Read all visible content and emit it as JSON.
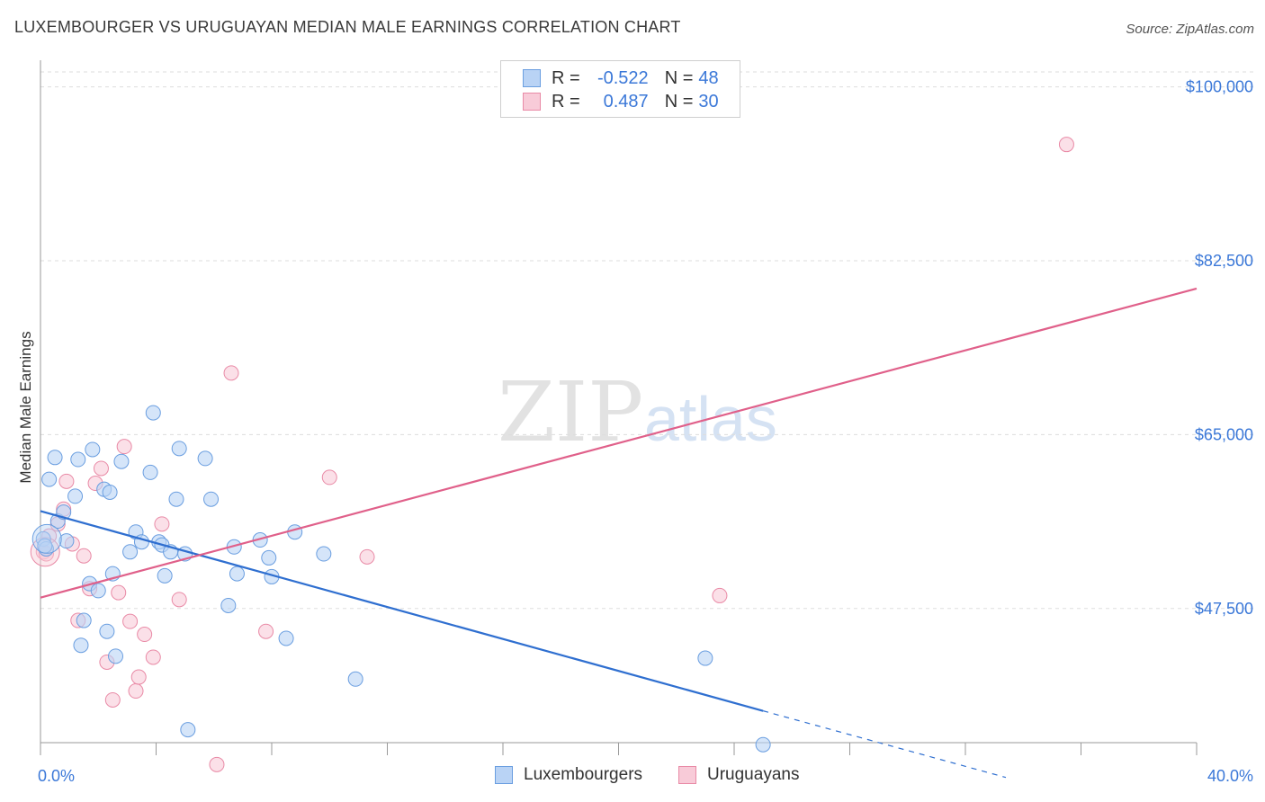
{
  "title": "LUXEMBOURGER VS URUGUAYAN MEDIAN MALE EARNINGS CORRELATION CHART",
  "source": {
    "label": "Source:",
    "value": "ZipAtlas.com"
  },
  "watermark": {
    "zip": "ZIP",
    "atlas": "atlas"
  },
  "colors": {
    "blue_fill": "#b9d3f5",
    "blue_stroke": "#6a9ee0",
    "blue_line": "#2f6fd0",
    "pink_fill": "#f8cbd8",
    "pink_stroke": "#e98aa6",
    "pink_line": "#e0608a",
    "tick_text": "#3b78d8",
    "grid": "#dddddd"
  },
  "legend": {
    "rows": [
      {
        "r_label": "R =",
        "r_value": "-0.522",
        "n_label": "N =",
        "n_value": "48"
      },
      {
        "r_label": "R =",
        "r_value": "0.487",
        "n_label": "N =",
        "n_value": "30"
      }
    ]
  },
  "bottom_legend": [
    "Luxembourgers",
    "Uruguayans"
  ],
  "chart_data": {
    "type": "scatter",
    "title": "LUXEMBOURGER VS URUGUAYAN MEDIAN MALE EARNINGS CORRELATION CHART",
    "xlabel": "",
    "ylabel": "Median Male Earnings",
    "xlim": [
      0,
      40
    ],
    "ylim": [
      34000,
      101500
    ],
    "x_tick_labels": [
      "0.0%",
      "40.0%"
    ],
    "y_ticks": [
      47500,
      65000,
      82500,
      100000
    ],
    "y_tick_labels": [
      "$47,500",
      "$65,000",
      "$82,500",
      "$100,000"
    ],
    "grid": true,
    "legend_placement": "top-center",
    "series": [
      {
        "name": "Luxembourgers",
        "points": [
          [
            0.1,
            54500
          ],
          [
            0.2,
            53500
          ],
          [
            0.3,
            60500
          ],
          [
            0.5,
            62700
          ],
          [
            0.6,
            56300
          ],
          [
            0.8,
            57200
          ],
          [
            0.9,
            54300
          ],
          [
            1.2,
            58800
          ],
          [
            1.3,
            62500
          ],
          [
            1.4,
            43800
          ],
          [
            1.5,
            46300
          ],
          [
            1.7,
            50000
          ],
          [
            1.8,
            63500
          ],
          [
            2.0,
            49300
          ],
          [
            2.2,
            59500
          ],
          [
            2.3,
            45200
          ],
          [
            2.4,
            59200
          ],
          [
            2.5,
            51000
          ],
          [
            2.6,
            42700
          ],
          [
            2.8,
            62300
          ],
          [
            3.1,
            53200
          ],
          [
            3.3,
            55200
          ],
          [
            3.5,
            54200
          ],
          [
            3.8,
            61200
          ],
          [
            3.9,
            67200
          ],
          [
            4.1,
            54200
          ],
          [
            4.2,
            53900
          ],
          [
            4.3,
            50800
          ],
          [
            4.5,
            53200
          ],
          [
            4.7,
            58500
          ],
          [
            4.8,
            63600
          ],
          [
            5.0,
            53000
          ],
          [
            5.1,
            35300
          ],
          [
            5.7,
            62600
          ],
          [
            5.9,
            58500
          ],
          [
            6.5,
            47800
          ],
          [
            6.7,
            53700
          ],
          [
            6.8,
            51000
          ],
          [
            7.6,
            54400
          ],
          [
            7.9,
            52600
          ],
          [
            8.0,
            50700
          ],
          [
            8.5,
            44500
          ],
          [
            8.8,
            55200
          ],
          [
            9.8,
            53000
          ],
          [
            10.9,
            40400
          ],
          [
            23.0,
            42500
          ],
          [
            25.0,
            33800
          ],
          [
            0.15,
            53800
          ]
        ]
      },
      {
        "name": "Uruguayans",
        "points": [
          [
            0.1,
            53200
          ],
          [
            0.3,
            54800
          ],
          [
            0.6,
            56000
          ],
          [
            0.8,
            57500
          ],
          [
            0.9,
            60300
          ],
          [
            1.1,
            54000
          ],
          [
            1.3,
            46300
          ],
          [
            1.5,
            52800
          ],
          [
            1.7,
            49500
          ],
          [
            1.9,
            60100
          ],
          [
            2.1,
            61600
          ],
          [
            2.3,
            42100
          ],
          [
            2.5,
            38300
          ],
          [
            2.7,
            49100
          ],
          [
            2.9,
            63800
          ],
          [
            3.1,
            46200
          ],
          [
            3.3,
            39200
          ],
          [
            3.4,
            40600
          ],
          [
            3.6,
            44900
          ],
          [
            3.9,
            42600
          ],
          [
            4.2,
            56000
          ],
          [
            4.8,
            48400
          ],
          [
            6.1,
            31800
          ],
          [
            6.6,
            71200
          ],
          [
            7.8,
            45200
          ],
          [
            10.0,
            60700
          ],
          [
            11.3,
            52700
          ],
          [
            23.5,
            48800
          ],
          [
            35.5,
            94200
          ],
          [
            0.2,
            53000
          ]
        ]
      }
    ],
    "trend_lines": [
      {
        "series": "Luxembourgers",
        "from": [
          0,
          57300
        ],
        "to": [
          25.0,
          37200
        ],
        "dashed_to": [
          33.4,
          30500
        ]
      },
      {
        "series": "Uruguayans",
        "from": [
          0,
          48600
        ],
        "to": [
          40,
          79700
        ]
      }
    ]
  }
}
